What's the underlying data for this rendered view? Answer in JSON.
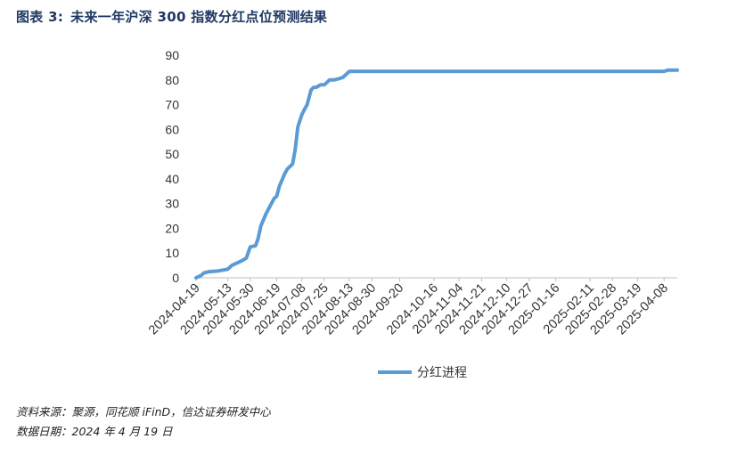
{
  "header": {
    "figure_no": "图表 3:",
    "title": "未来一年沪深 300 指数分红点位预测结果"
  },
  "footer": {
    "source": "资料来源：聚源，同花顺 iFinD，信达证券研发中心",
    "date": "数据日期：2024 年 4 月 19 日"
  },
  "chart_data": {
    "type": "line",
    "title": "未来一年沪深 300 指数分红点位预测结果",
    "xlabel": "",
    "ylabel": "",
    "ylim": [
      0,
      90
    ],
    "yticks": [
      0,
      10,
      20,
      30,
      40,
      50,
      60,
      70,
      80,
      90
    ],
    "x_tick_labels": [
      "2024-04-19",
      "2024-05-13",
      "2024-05-30",
      "2024-06-19",
      "2024-07-08",
      "2024-07-25",
      "2024-08-13",
      "2024-08-30",
      "2024-09-20",
      "2024-10-16",
      "2024-11-04",
      "2024-11-21",
      "2024-12-10",
      "2024-12-27",
      "2025-01-16",
      "2025-02-11",
      "2025-02-28",
      "2025-03-19",
      "2025-04-08"
    ],
    "grid": false,
    "legend_position": "bottom",
    "color": "#5b9bd5",
    "series": [
      {
        "name": "分红进程",
        "x": [
          "2024-04-19",
          "2024-04-23",
          "2024-04-25",
          "2024-04-29",
          "2024-05-06",
          "2024-05-08",
          "2024-05-13",
          "2024-05-16",
          "2024-05-20",
          "2024-05-22",
          "2024-05-24",
          "2024-05-27",
          "2024-05-30",
          "2024-06-03",
          "2024-06-05",
          "2024-06-07",
          "2024-06-11",
          "2024-06-13",
          "2024-06-17",
          "2024-06-19",
          "2024-06-21",
          "2024-06-25",
          "2024-06-27",
          "2024-07-01",
          "2024-07-03",
          "2024-07-05",
          "2024-07-08",
          "2024-07-10",
          "2024-07-12",
          "2024-07-15",
          "2024-07-17",
          "2024-07-19",
          "2024-07-22",
          "2024-07-25",
          "2024-07-29",
          "2024-08-01",
          "2024-08-05",
          "2024-08-08",
          "2024-08-13",
          "2024-08-16",
          "2024-08-20",
          "2024-08-23",
          "2024-08-27",
          "2024-08-30",
          "2024-09-20",
          "2024-10-16",
          "2024-11-04",
          "2024-11-21",
          "2024-12-10",
          "2024-12-27",
          "2025-01-16",
          "2025-02-11",
          "2025-02-28",
          "2025-03-19",
          "2025-04-08",
          "2025-04-11",
          "2025-04-18"
        ],
        "values": [
          0,
          1,
          2,
          2.5,
          2.8,
          3,
          3.5,
          5,
          6,
          6.5,
          7,
          8,
          12.5,
          13,
          16,
          21,
          26,
          28,
          32,
          33,
          37,
          42,
          44,
          46,
          52,
          61,
          66,
          68,
          70,
          76,
          77,
          77,
          78,
          78,
          80,
          80,
          80.5,
          81,
          83.5,
          83.5,
          83.5,
          83.5,
          83.5,
          83.5,
          83.5,
          83.5,
          83.5,
          83.5,
          83.5,
          83.5,
          83.5,
          83.5,
          83.5,
          83.5,
          83.5,
          84,
          84
        ]
      }
    ]
  }
}
